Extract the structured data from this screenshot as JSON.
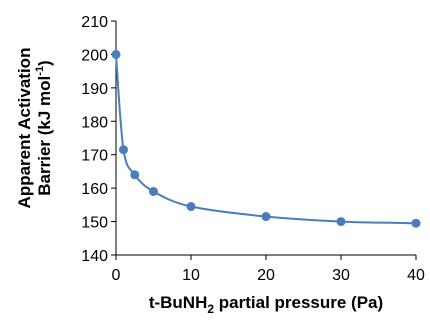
{
  "chart_data": {
    "type": "scatter",
    "title": "",
    "xlabel": {
      "main": "t-BuNH",
      "sub": "2",
      "rest": " partial pressure (Pa)"
    },
    "ylabel": {
      "line1": "Apparent Activation",
      "line2_main": "Barrier (kJ mol",
      "line2_sup": "-1",
      "line2_rest": ")"
    },
    "xlim": [
      0,
      40
    ],
    "ylim": [
      140,
      210
    ],
    "xticks": [
      0,
      10,
      20,
      30,
      40
    ],
    "yticks": [
      140,
      150,
      160,
      170,
      180,
      190,
      200,
      210
    ],
    "grid": false,
    "legend": "none",
    "series": [
      {
        "color": "#4a7ebb",
        "smooth_line": true,
        "x": [
          0,
          1,
          2.5,
          5,
          10,
          20,
          30,
          40
        ],
        "y": [
          200,
          171.5,
          164,
          159,
          154.5,
          151.5,
          150,
          149.5
        ]
      }
    ]
  }
}
